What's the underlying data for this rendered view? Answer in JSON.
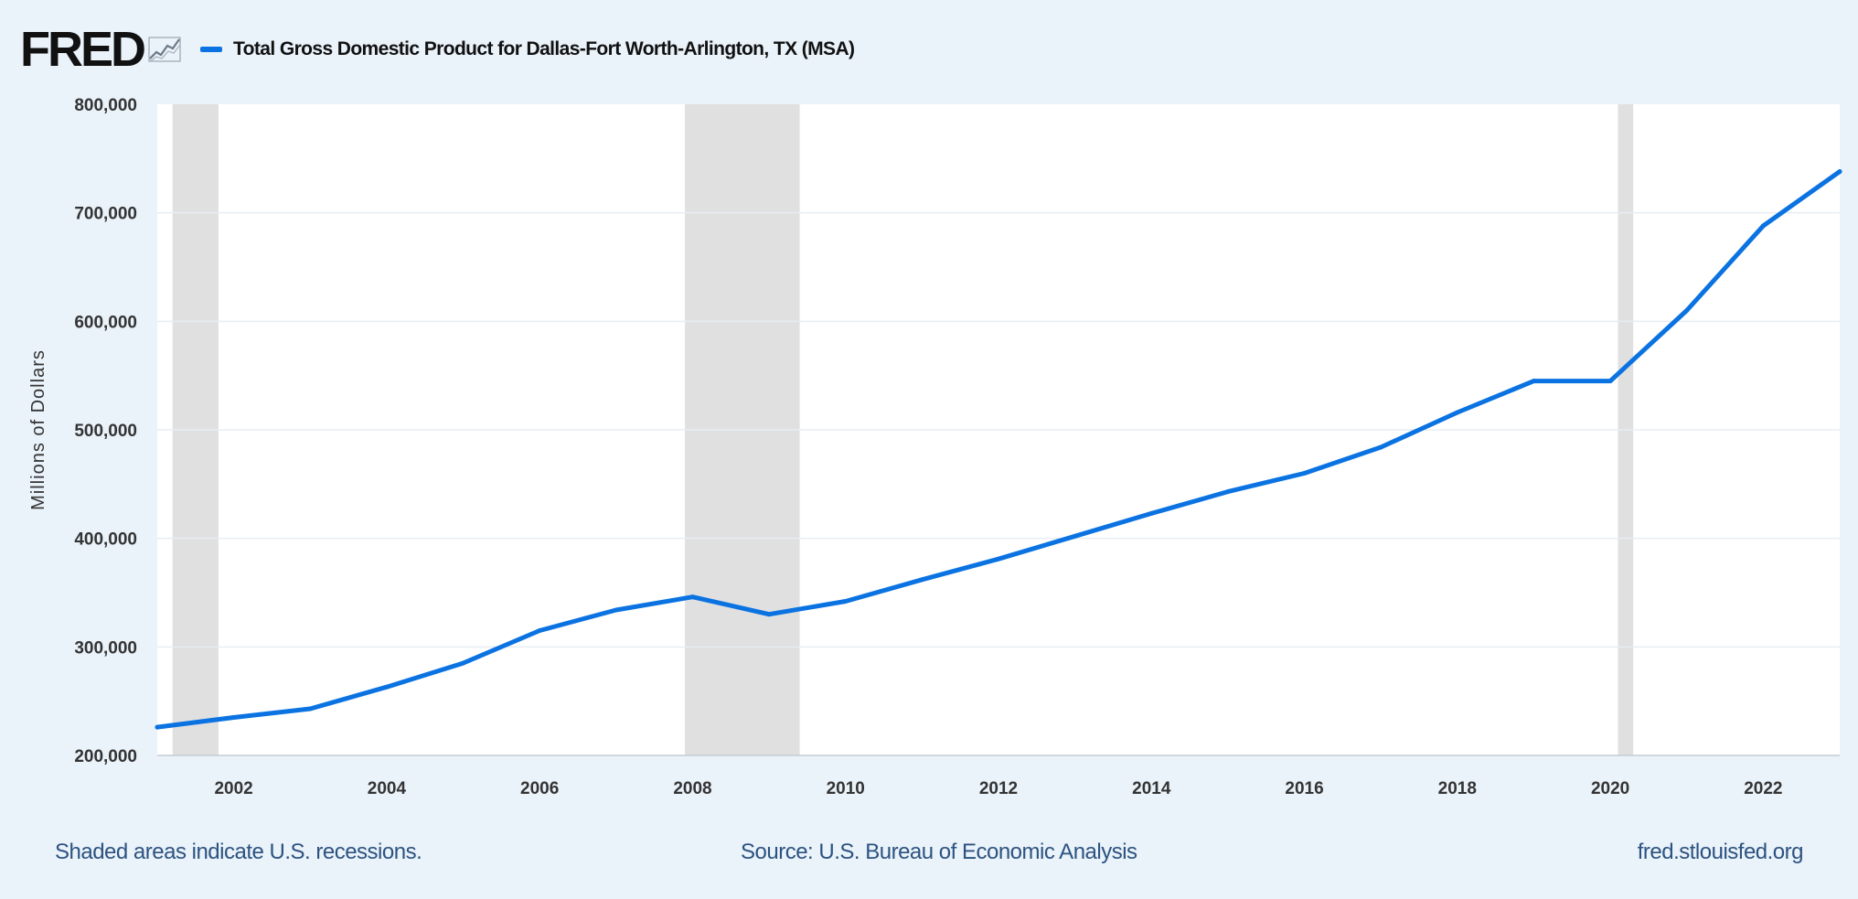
{
  "logo": {
    "text": "FRED",
    "icon": "fred-chart-icon"
  },
  "colors": {
    "background": "#eaf2fa",
    "plot_background": "#ffffff",
    "line": "#0b73e1",
    "recession": "#e0e0e0",
    "grid": "#e8edf2"
  },
  "chart_data": {
    "type": "line",
    "title": "",
    "xlabel": "",
    "ylabel": "Millions of Dollars",
    "xlim": [
      2001,
      2023
    ],
    "ylim": [
      200000,
      800000
    ],
    "yticks": [
      200000,
      300000,
      400000,
      500000,
      600000,
      700000,
      800000
    ],
    "ytick_labels": [
      "200,000",
      "300,000",
      "400,000",
      "500,000",
      "600,000",
      "700,000",
      "800,000"
    ],
    "xticks": [
      2002,
      2004,
      2006,
      2008,
      2010,
      2012,
      2014,
      2016,
      2018,
      2020,
      2022
    ],
    "xtick_labels": [
      "2002",
      "2004",
      "2006",
      "2008",
      "2010",
      "2012",
      "2014",
      "2016",
      "2018",
      "2020",
      "2022"
    ],
    "grid": true,
    "legend_position": "top-left",
    "recessions": [
      {
        "start": 2001.2,
        "end": 2001.8
      },
      {
        "start": 2007.9,
        "end": 2009.4
      },
      {
        "start": 2020.1,
        "end": 2020.3
      }
    ],
    "series": [
      {
        "name": "Total Gross Domestic Product for Dallas-Fort Worth-Arlington, TX (MSA)",
        "color": "#0b73e1",
        "x": [
          2001,
          2002,
          2003,
          2004,
          2005,
          2006,
          2007,
          2008,
          2009,
          2010,
          2011,
          2012,
          2013,
          2014,
          2015,
          2016,
          2017,
          2018,
          2019,
          2020,
          2021,
          2022,
          2023
        ],
        "values": [
          226000,
          235000,
          243000,
          263000,
          285000,
          315000,
          334000,
          346000,
          330000,
          342000,
          362000,
          381000,
          402000,
          423000,
          443000,
          460000,
          484000,
          516000,
          545000,
          545000,
          610000,
          688000,
          738000
        ]
      }
    ]
  },
  "footer": {
    "left": "Shaded areas indicate U.S. recessions.",
    "center": "Source: U.S. Bureau of Economic Analysis",
    "right": "fred.stlouisfed.org"
  }
}
